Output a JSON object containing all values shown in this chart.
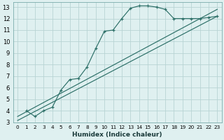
{
  "xlabel": "Humidex (Indice chaleur)",
  "bg_color": "#dff0f0",
  "grid_color": "#b8d4d4",
  "line_color": "#2d7068",
  "xlim": [
    -0.5,
    23.5
  ],
  "ylim": [
    3,
    13.4
  ],
  "xticks": [
    0,
    1,
    2,
    3,
    4,
    5,
    6,
    7,
    8,
    9,
    10,
    11,
    12,
    13,
    14,
    15,
    16,
    17,
    18,
    19,
    20,
    21,
    22,
    23
  ],
  "yticks": [
    3,
    4,
    5,
    6,
    7,
    8,
    9,
    10,
    11,
    12,
    13
  ],
  "curve1_x": [
    1,
    2,
    3,
    4,
    5,
    6,
    7,
    8,
    9,
    10,
    11,
    12,
    13,
    14,
    15,
    16,
    17,
    18,
    19,
    20,
    21,
    22,
    23
  ],
  "curve1_y": [
    4.0,
    3.5,
    4.0,
    4.3,
    5.8,
    6.7,
    6.8,
    7.8,
    9.4,
    10.9,
    11.0,
    12.0,
    12.9,
    13.1,
    13.1,
    13.0,
    12.8,
    12.0,
    12.0,
    12.0,
    12.0,
    12.1,
    12.2
  ],
  "line1_x": [
    0,
    23
  ],
  "line1_y": [
    3.15,
    12.2
  ],
  "line2_x": [
    0,
    23
  ],
  "line2_y": [
    3.5,
    12.8
  ],
  "xlabel_fontsize": 6.5,
  "tick_fontsize_x": 5.2,
  "tick_fontsize_y": 6.0
}
